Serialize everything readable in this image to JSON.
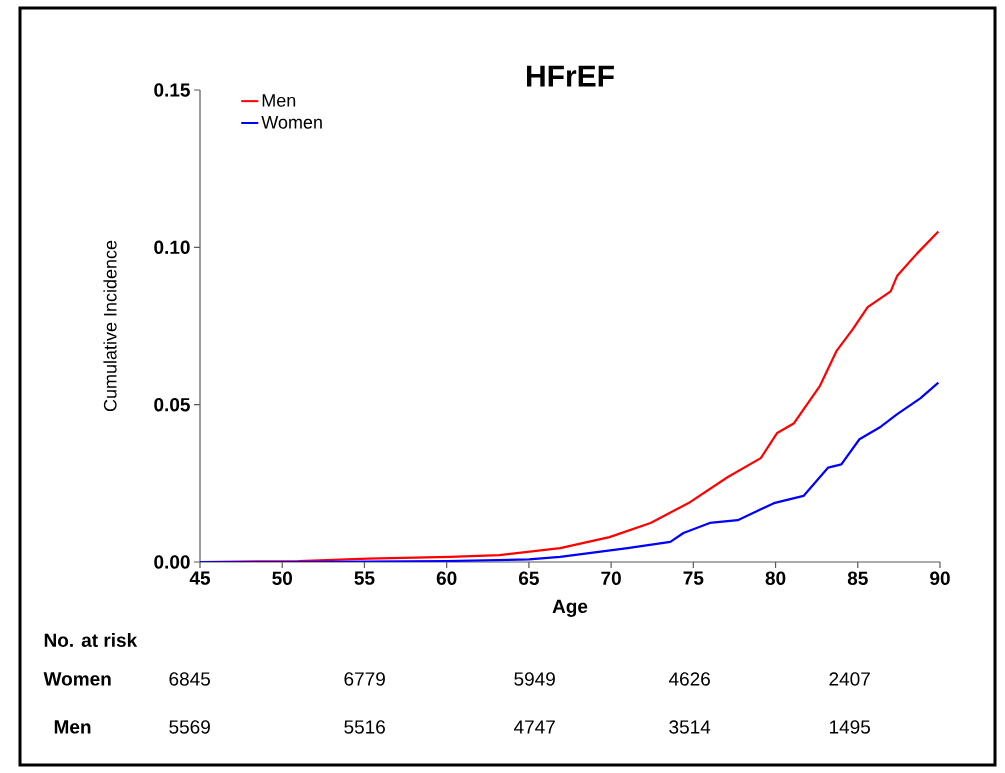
{
  "chart_data": {
    "type": "line",
    "title": "HFrEF",
    "xlabel": "Age",
    "ylabel": "Cumulative Incidence",
    "xlim": [
      45,
      90
    ],
    "xticks": [
      45,
      50,
      55,
      60,
      65,
      70,
      75,
      80,
      85,
      90
    ],
    "ylim": [
      0,
      0.15
    ],
    "yticks": [
      {
        "value": 0,
        "label": "0.00"
      },
      {
        "value": 0.05,
        "label": "0.05"
      },
      {
        "value": 0.1,
        "label": "0.10"
      },
      {
        "value": 0.15,
        "label": "0.15"
      }
    ],
    "grid": false,
    "legend": "top left",
    "marker": "none",
    "line_style": "solid",
    "series": [
      {
        "name": "Men",
        "color": "#ff0000",
        "x": [
          45,
          51,
          55.2,
          60.2,
          63.2,
          66.9,
          69.9,
          72.4,
          74.8,
          77.1,
          79.1,
          80.1,
          81.1,
          82.7,
          83.7,
          84.7,
          85.6,
          87.0,
          87.4,
          88.6,
          89.9
        ],
        "values": [
          0,
          0.0003,
          0.0011,
          0.0016,
          0.0022,
          0.0044,
          0.0079,
          0.0124,
          0.019,
          0.027,
          0.033,
          0.041,
          0.044,
          0.056,
          0.067,
          0.074,
          0.081,
          0.086,
          0.091,
          0.098,
          0.105
        ]
      },
      {
        "name": "Women",
        "color": "#0000ff",
        "x": [
          45,
          50,
          60,
          65,
          66.9,
          71,
          73.6,
          74.4,
          76,
          77.7,
          79.9,
          81.7,
          83.2,
          84,
          85.1,
          86.4,
          87.4,
          88.8,
          89.9
        ],
        "values": [
          0,
          0,
          0.0003,
          0.0008,
          0.0016,
          0.0044,
          0.0064,
          0.0092,
          0.0124,
          0.0133,
          0.0187,
          0.021,
          0.03,
          0.031,
          0.039,
          0.043,
          0.047,
          0.052,
          0.057
        ]
      }
    ],
    "annotations": [
      "No. at risk",
      "Women",
      "6845",
      "6779",
      "5949",
      "4626",
      "2407",
      "Men",
      "5569",
      "5516",
      "4747",
      "3514",
      "1495"
    ]
  }
}
